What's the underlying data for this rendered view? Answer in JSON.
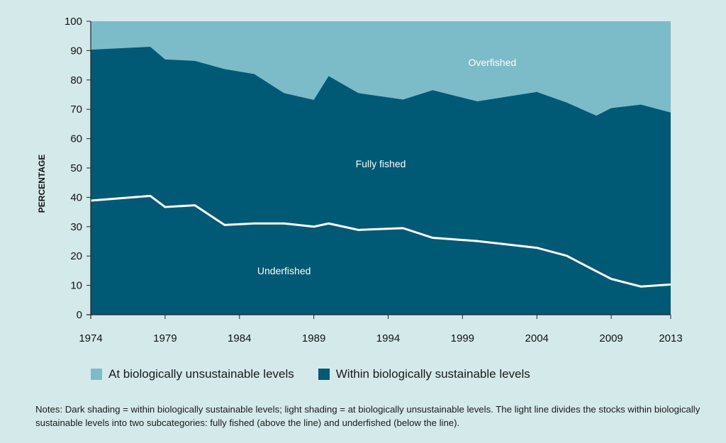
{
  "colors": {
    "background": "#d4eaea",
    "unsustainable": "#7bbcc8",
    "sustainable": "#005a76",
    "divider_line": "#ffffff",
    "axis": "#222222"
  },
  "chart_data": {
    "type": "area",
    "ylabel": "PERCENTAGE",
    "xlabel": "",
    "xlim": [
      1974,
      2013
    ],
    "ylim": [
      0,
      100
    ],
    "x_ticks": [
      1974,
      1979,
      1984,
      1989,
      1994,
      1999,
      2004,
      2009,
      2013
    ],
    "y_ticks": [
      0,
      10,
      20,
      30,
      40,
      50,
      60,
      70,
      80,
      90,
      100
    ],
    "series": [
      {
        "name": "Within biologically sustainable levels",
        "x": [
          1974,
          1978,
          1979,
          1981,
          1983,
          1985,
          1987,
          1989,
          1990,
          1992,
          1995,
          1997,
          2000,
          2004,
          2006,
          2008,
          2009,
          2011,
          2013
        ],
        "y": [
          90.3,
          91.3,
          87.0,
          86.5,
          83.7,
          82.0,
          75.5,
          73.2,
          81.3,
          75.5,
          73.3,
          76.5,
          72.7,
          75.9,
          72.3,
          67.8,
          70.4,
          71.6,
          68.9
        ]
      },
      {
        "name": "Underfished",
        "x": [
          1974,
          1978,
          1979,
          1981,
          1983,
          1985,
          1987,
          1989,
          1990,
          1992,
          1995,
          1997,
          2000,
          2004,
          2006,
          2008,
          2009,
          2011,
          2013
        ],
        "y": [
          38.9,
          40.5,
          36.7,
          37.3,
          30.6,
          31.1,
          31.1,
          30.0,
          31.1,
          28.9,
          29.5,
          26.2,
          25.1,
          22.8,
          20.1,
          14.8,
          12.2,
          9.6,
          10.3
        ]
      }
    ],
    "region_labels": {
      "top": "Overfished",
      "middle": "Fully fished",
      "bottom": "Underfished"
    },
    "legend": [
      {
        "label": "At biologically unsustainable levels",
        "color": "#7bbcc8"
      },
      {
        "label": "Within biologically sustainable levels",
        "color": "#005a76"
      }
    ],
    "grid": false,
    "legend_position": "bottom-left"
  },
  "notes": "Notes: Dark shading = within biologically sustainable levels; light shading = at biologically unsustainable levels. The light line divides the stocks within biologically sustainable levels into two subcategories: fully fished (above the line) and underfished (below the line)."
}
